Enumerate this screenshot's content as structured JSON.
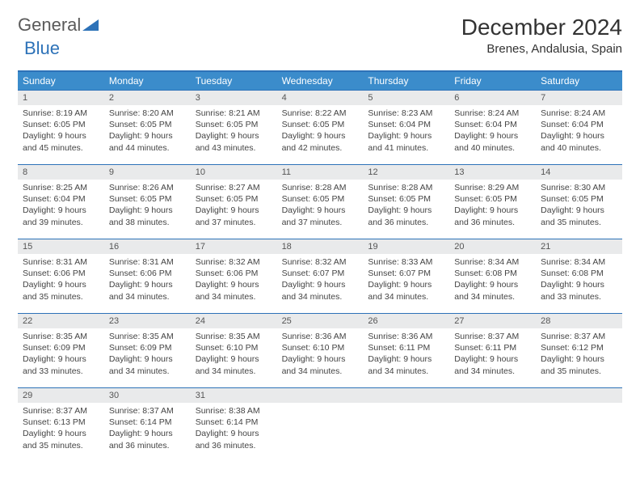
{
  "brand": {
    "part1": "General",
    "part2": "Blue"
  },
  "title": "December 2024",
  "location": "Brenes, Andalusia, Spain",
  "colors": {
    "header_bg": "#3b8ccb",
    "header_text": "#ffffff",
    "border": "#2d72b8",
    "daynum_bg": "#e9eaeb",
    "body_text": "#444444"
  },
  "dayHeaders": [
    "Sunday",
    "Monday",
    "Tuesday",
    "Wednesday",
    "Thursday",
    "Friday",
    "Saturday"
  ],
  "days": [
    {
      "num": "1",
      "sunrise": "Sunrise: 8:19 AM",
      "sunset": "Sunset: 6:05 PM",
      "daylight": "Daylight: 9 hours and 45 minutes."
    },
    {
      "num": "2",
      "sunrise": "Sunrise: 8:20 AM",
      "sunset": "Sunset: 6:05 PM",
      "daylight": "Daylight: 9 hours and 44 minutes."
    },
    {
      "num": "3",
      "sunrise": "Sunrise: 8:21 AM",
      "sunset": "Sunset: 6:05 PM",
      "daylight": "Daylight: 9 hours and 43 minutes."
    },
    {
      "num": "4",
      "sunrise": "Sunrise: 8:22 AM",
      "sunset": "Sunset: 6:05 PM",
      "daylight": "Daylight: 9 hours and 42 minutes."
    },
    {
      "num": "5",
      "sunrise": "Sunrise: 8:23 AM",
      "sunset": "Sunset: 6:04 PM",
      "daylight": "Daylight: 9 hours and 41 minutes."
    },
    {
      "num": "6",
      "sunrise": "Sunrise: 8:24 AM",
      "sunset": "Sunset: 6:04 PM",
      "daylight": "Daylight: 9 hours and 40 minutes."
    },
    {
      "num": "7",
      "sunrise": "Sunrise: 8:24 AM",
      "sunset": "Sunset: 6:04 PM",
      "daylight": "Daylight: 9 hours and 40 minutes."
    },
    {
      "num": "8",
      "sunrise": "Sunrise: 8:25 AM",
      "sunset": "Sunset: 6:04 PM",
      "daylight": "Daylight: 9 hours and 39 minutes."
    },
    {
      "num": "9",
      "sunrise": "Sunrise: 8:26 AM",
      "sunset": "Sunset: 6:05 PM",
      "daylight": "Daylight: 9 hours and 38 minutes."
    },
    {
      "num": "10",
      "sunrise": "Sunrise: 8:27 AM",
      "sunset": "Sunset: 6:05 PM",
      "daylight": "Daylight: 9 hours and 37 minutes."
    },
    {
      "num": "11",
      "sunrise": "Sunrise: 8:28 AM",
      "sunset": "Sunset: 6:05 PM",
      "daylight": "Daylight: 9 hours and 37 minutes."
    },
    {
      "num": "12",
      "sunrise": "Sunrise: 8:28 AM",
      "sunset": "Sunset: 6:05 PM",
      "daylight": "Daylight: 9 hours and 36 minutes."
    },
    {
      "num": "13",
      "sunrise": "Sunrise: 8:29 AM",
      "sunset": "Sunset: 6:05 PM",
      "daylight": "Daylight: 9 hours and 36 minutes."
    },
    {
      "num": "14",
      "sunrise": "Sunrise: 8:30 AM",
      "sunset": "Sunset: 6:05 PM",
      "daylight": "Daylight: 9 hours and 35 minutes."
    },
    {
      "num": "15",
      "sunrise": "Sunrise: 8:31 AM",
      "sunset": "Sunset: 6:06 PM",
      "daylight": "Daylight: 9 hours and 35 minutes."
    },
    {
      "num": "16",
      "sunrise": "Sunrise: 8:31 AM",
      "sunset": "Sunset: 6:06 PM",
      "daylight": "Daylight: 9 hours and 34 minutes."
    },
    {
      "num": "17",
      "sunrise": "Sunrise: 8:32 AM",
      "sunset": "Sunset: 6:06 PM",
      "daylight": "Daylight: 9 hours and 34 minutes."
    },
    {
      "num": "18",
      "sunrise": "Sunrise: 8:32 AM",
      "sunset": "Sunset: 6:07 PM",
      "daylight": "Daylight: 9 hours and 34 minutes."
    },
    {
      "num": "19",
      "sunrise": "Sunrise: 8:33 AM",
      "sunset": "Sunset: 6:07 PM",
      "daylight": "Daylight: 9 hours and 34 minutes."
    },
    {
      "num": "20",
      "sunrise": "Sunrise: 8:34 AM",
      "sunset": "Sunset: 6:08 PM",
      "daylight": "Daylight: 9 hours and 34 minutes."
    },
    {
      "num": "21",
      "sunrise": "Sunrise: 8:34 AM",
      "sunset": "Sunset: 6:08 PM",
      "daylight": "Daylight: 9 hours and 33 minutes."
    },
    {
      "num": "22",
      "sunrise": "Sunrise: 8:35 AM",
      "sunset": "Sunset: 6:09 PM",
      "daylight": "Daylight: 9 hours and 33 minutes."
    },
    {
      "num": "23",
      "sunrise": "Sunrise: 8:35 AM",
      "sunset": "Sunset: 6:09 PM",
      "daylight": "Daylight: 9 hours and 34 minutes."
    },
    {
      "num": "24",
      "sunrise": "Sunrise: 8:35 AM",
      "sunset": "Sunset: 6:10 PM",
      "daylight": "Daylight: 9 hours and 34 minutes."
    },
    {
      "num": "25",
      "sunrise": "Sunrise: 8:36 AM",
      "sunset": "Sunset: 6:10 PM",
      "daylight": "Daylight: 9 hours and 34 minutes."
    },
    {
      "num": "26",
      "sunrise": "Sunrise: 8:36 AM",
      "sunset": "Sunset: 6:11 PM",
      "daylight": "Daylight: 9 hours and 34 minutes."
    },
    {
      "num": "27",
      "sunrise": "Sunrise: 8:37 AM",
      "sunset": "Sunset: 6:11 PM",
      "daylight": "Daylight: 9 hours and 34 minutes."
    },
    {
      "num": "28",
      "sunrise": "Sunrise: 8:37 AM",
      "sunset": "Sunset: 6:12 PM",
      "daylight": "Daylight: 9 hours and 35 minutes."
    },
    {
      "num": "29",
      "sunrise": "Sunrise: 8:37 AM",
      "sunset": "Sunset: 6:13 PM",
      "daylight": "Daylight: 9 hours and 35 minutes."
    },
    {
      "num": "30",
      "sunrise": "Sunrise: 8:37 AM",
      "sunset": "Sunset: 6:14 PM",
      "daylight": "Daylight: 9 hours and 36 minutes."
    },
    {
      "num": "31",
      "sunrise": "Sunrise: 8:38 AM",
      "sunset": "Sunset: 6:14 PM",
      "daylight": "Daylight: 9 hours and 36 minutes."
    }
  ]
}
